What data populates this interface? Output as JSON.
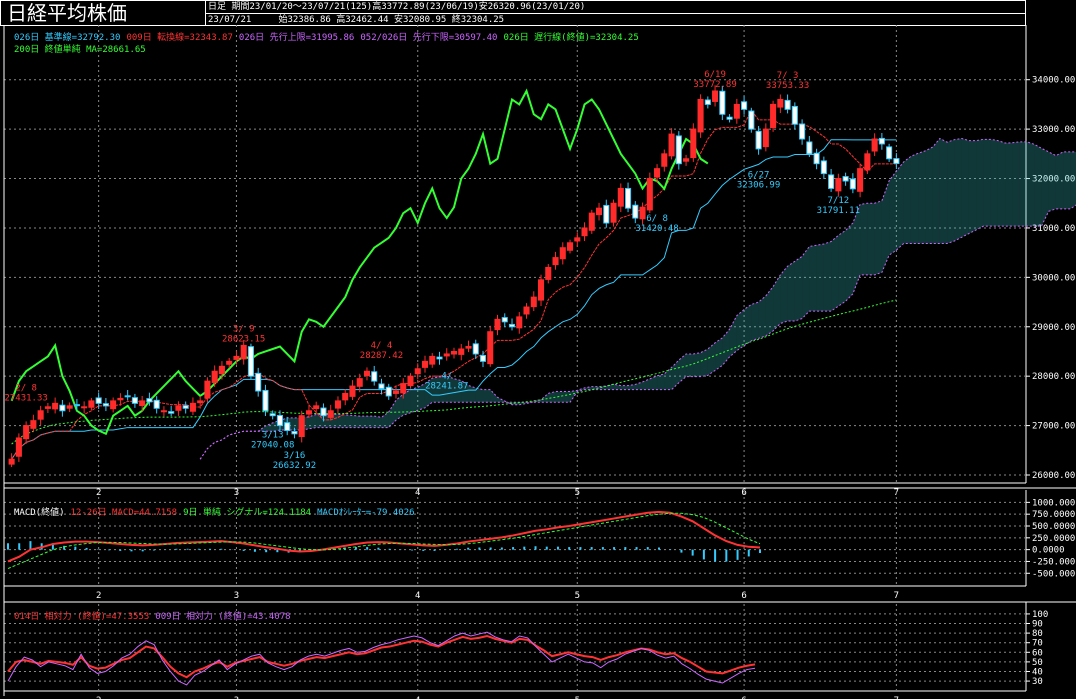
{
  "header": {
    "title": "日経平均株価",
    "period_type": "日足",
    "summary": "期間23/01/20～23/07/21(125)高33772.89(23/06/19)安26320.96(23/01/20)",
    "date": "23/07/21",
    "ohlc": "始32386.86 高32462.44 安32080.95 終32304.25"
  },
  "legends": {
    "main_line1": [
      {
        "text": "026日 基準線=32792.30",
        "color": "#33ccff"
      },
      {
        "text": "009日 転換線=32343.87",
        "color": "#ff3333"
      },
      {
        "text": "026日 先行上限=31995.86",
        "color": "#cc66ff"
      },
      {
        "text": "052/026日 先行下限=30597.40",
        "color": "#cc66ff"
      },
      {
        "text": "026日 遅行線(終値)=32304.25",
        "color": "#33ff33"
      }
    ],
    "main_line2": [
      {
        "text": "200日 終値単純 MA=28661.65",
        "color": "#33ff33"
      }
    ],
    "macd": [
      {
        "text": "MACD(終値)",
        "color": "#ffffff"
      },
      {
        "text": "12-26日 MACD=44.7158",
        "color": "#ff3333"
      },
      {
        "text": "9日 単純 シグナル=124.1184",
        "color": "#33ff33"
      },
      {
        "text": "MACDｵｼﾚｰﾀｰ=-79.4026",
        "color": "#33ccff"
      }
    ],
    "rsi": [
      {
        "text": "014日 相対力 (終値)=47.3553",
        "color": "#ff3333"
      },
      {
        "text": "009日 相対力 (終値)=43.4078",
        "color": "#cc66ff"
      }
    ]
  },
  "chart_data": [
    {
      "type": "candlestick",
      "panel": "price",
      "ylim": [
        26000,
        34500
      ],
      "y_ticks": [
        "34000.00",
        "33000.00",
        "32000.00",
        "31000.00",
        "30000.00",
        "29000.00",
        "28000.00",
        "27000.00",
        "26000.00"
      ],
      "x_ticks": [
        "2",
        "3",
        "4",
        "5",
        "6",
        "7"
      ],
      "period_high": 33772.89,
      "period_low": 26320.96,
      "closes": [
        26320,
        26750,
        27000,
        27100,
        27300,
        27380,
        27450,
        27300,
        27400,
        27420,
        27380,
        27500,
        27450,
        27400,
        27500,
        27550,
        27600,
        27450,
        27500,
        27480,
        27350,
        27300,
        27250,
        27400,
        27350,
        27450,
        27500,
        27900,
        28100,
        28200,
        28300,
        28400,
        28623,
        28000,
        27700,
        27300,
        27200,
        27000,
        26900,
        26833,
        27200,
        27300,
        27400,
        27200,
        27300,
        27500,
        27650,
        27800,
        27950,
        28100,
        27900,
        27750,
        27600,
        27700,
        27850,
        28000,
        28150,
        28300,
        28400,
        28350,
        28450,
        28500,
        28550,
        28600,
        28450,
        28300,
        28900,
        29150,
        29100,
        29000,
        29200,
        29400,
        29600,
        29950,
        30200,
        30400,
        30600,
        30700,
        30800,
        31000,
        31300,
        31400,
        31100,
        31500,
        31800,
        31400,
        31200,
        31420,
        32000,
        32200,
        32500,
        32900,
        32300,
        32400,
        33000,
        33600,
        33500,
        33772,
        33300,
        33200,
        33500,
        33400,
        33000,
        32600,
        33000,
        33500,
        33600,
        33400,
        33100,
        32800,
        32500,
        32300,
        32100,
        31800,
        32000,
        31950,
        31791,
        32200,
        32500,
        32800,
        32700,
        32400,
        32304
      ],
      "annotations": [
        {
          "label": "2/ 8",
          "value": "27431.33",
          "x": 2,
          "y": 27431,
          "color": "#ff3333"
        },
        {
          "label": "3/ 9",
          "value": "28623.15",
          "x": 32,
          "y": 28623,
          "color": "#ff3333"
        },
        {
          "label": "3/16",
          "value": "26632.92",
          "x": 39,
          "y": 26632,
          "color": "#33ccff"
        },
        {
          "label": "4/ 4",
          "value": "28287.42",
          "x": 51,
          "y": 28287,
          "color": "#ff3333"
        },
        {
          "label": "4/",
          "value": "28241.87",
          "x": 60,
          "y": 28241,
          "color": "#33ccff"
        },
        {
          "label": "3/13",
          "value": "27040.08",
          "x": 36,
          "y": 27040,
          "color": "#33ccff"
        },
        {
          "label": "6/19",
          "value": "33772.89",
          "x": 97,
          "y": 33772,
          "color": "#ff3333"
        },
        {
          "label": "7/ 3",
          "value": "33753.33",
          "x": 107,
          "y": 33753,
          "color": "#ff3333"
        },
        {
          "label": "6/ 8",
          "value": "31420.48",
          "x": 89,
          "y": 31420,
          "color": "#33ccff"
        },
        {
          "label": "6/27",
          "value": "32306.99",
          "x": 103,
          "y": 32306,
          "color": "#33ccff"
        },
        {
          "label": "7/12",
          "value": "31791.11",
          "x": 114,
          "y": 31791,
          "color": "#33ccff"
        }
      ]
    },
    {
      "type": "line",
      "panel": "macd",
      "ylim": [
        -600,
        1050
      ],
      "y_ticks": [
        "1000.0000",
        "750.0000",
        "500.0000",
        "250.0000",
        "0.0000",
        "-250.0000",
        "-500.0000"
      ],
      "x_ticks": [
        "2",
        "3",
        "4",
        "5",
        "6",
        "7"
      ],
      "series": [
        {
          "name": "MACD",
          "values": [
            -250,
            -150,
            0,
            50,
            120,
            150,
            170,
            170,
            160,
            140,
            120,
            100,
            90,
            100,
            120,
            140,
            150,
            160,
            170,
            180,
            160,
            130,
            90,
            50,
            20,
            -20,
            -40,
            -30,
            0,
            40,
            80,
            120,
            150,
            160,
            150,
            130,
            110,
            90,
            80,
            100,
            130,
            170,
            200,
            230,
            260,
            300,
            350,
            400,
            430,
            470,
            500,
            540,
            580,
            620,
            660,
            700,
            740,
            780,
            800,
            780,
            700,
            600,
            450,
            300,
            180,
            100,
            60,
            44.7
          ]
        },
        {
          "name": "シグナル",
          "values": [
            -400,
            -300,
            -200,
            -100,
            0,
            60,
            100,
            130,
            150,
            155,
            150,
            140,
            130,
            120,
            115,
            120,
            130,
            140,
            150,
            160,
            165,
            160,
            140,
            110,
            80,
            50,
            20,
            0,
            -5,
            5,
            30,
            60,
            90,
            115,
            130,
            135,
            130,
            120,
            110,
            105,
            110,
            125,
            150,
            180,
            210,
            240,
            280,
            320,
            360,
            400,
            440,
            480,
            520,
            560,
            600,
            640,
            680,
            720,
            750,
            770,
            770,
            740,
            680,
            580,
            460,
            340,
            220,
            124.1
          ]
        }
      ]
    },
    {
      "type": "line",
      "panel": "rsi",
      "ylim": [
        28,
        102
      ],
      "y_ticks": [
        "100",
        "90",
        "80",
        "70",
        "60",
        "50",
        "40",
        "30"
      ],
      "x_ticks": [
        "2",
        "3",
        "4",
        "5",
        "6",
        "7"
      ],
      "series": [
        {
          "name": "相対力14",
          "values": [
            40,
            50,
            52,
            50,
            48,
            51,
            50,
            49,
            47,
            55,
            46,
            43,
            44,
            48,
            52,
            54,
            60,
            66,
            64,
            55,
            45,
            38,
            34,
            40,
            43,
            47,
            50,
            45,
            49,
            51,
            53,
            55,
            50,
            48,
            46,
            48,
            51,
            53,
            55,
            54,
            56,
            58,
            60,
            58,
            59,
            62,
            65,
            66,
            68,
            70,
            72,
            71,
            68,
            66,
            70,
            73,
            76,
            74,
            75,
            77,
            74,
            72,
            70,
            74,
            73,
            67,
            62,
            56,
            58,
            60,
            58,
            56,
            55,
            52,
            55,
            57,
            60,
            62,
            64,
            63,
            60,
            58,
            59,
            54,
            50,
            45,
            40,
            39,
            38,
            41,
            44,
            46,
            47.4
          ]
        },
        {
          "name": "相対力9",
          "values": [
            30,
            45,
            55,
            52,
            45,
            50,
            48,
            46,
            42,
            58,
            44,
            38,
            40,
            46,
            54,
            58,
            66,
            72,
            68,
            52,
            40,
            30,
            26,
            36,
            40,
            46,
            52,
            42,
            48,
            52,
            56,
            58,
            49,
            45,
            42,
            45,
            52,
            56,
            58,
            56,
            59,
            62,
            64,
            60,
            61,
            65,
            68,
            70,
            73,
            75,
            77,
            75,
            70,
            67,
            72,
            77,
            80,
            77,
            79,
            81,
            76,
            73,
            71,
            77,
            75,
            66,
            58,
            50,
            54,
            58,
            54,
            50,
            49,
            44,
            50,
            53,
            58,
            61,
            64,
            62,
            57,
            54,
            56,
            48,
            43,
            37,
            32,
            30,
            28,
            33,
            38,
            42,
            43.4
          ]
        }
      ]
    }
  ]
}
